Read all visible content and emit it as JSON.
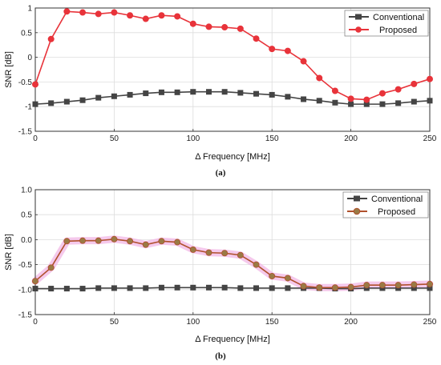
{
  "chart_data": [
    {
      "type": "line",
      "caption": "(a)",
      "xlabel": "Δ Frequency [MHz]",
      "ylabel": "SNR [dB]",
      "xlim": [
        0,
        250
      ],
      "ylim": [
        -1.5,
        1.0
      ],
      "xticks": [
        0,
        50,
        100,
        150,
        200,
        250
      ],
      "yticks": [
        -1.5,
        -1.0,
        -0.5,
        0.0,
        0.5,
        1.0
      ],
      "ytick_labels": [
        "-1.5",
        "-1",
        "-0.5",
        "0",
        "0.5",
        "1"
      ],
      "grid": true,
      "legend_position": "top-right",
      "x": [
        0,
        10,
        20,
        30,
        40,
        50,
        60,
        70,
        80,
        90,
        100,
        110,
        120,
        130,
        140,
        150,
        160,
        170,
        180,
        190,
        200,
        210,
        220,
        230,
        240,
        250
      ],
      "series": [
        {
          "name": "Conventional",
          "color": "#444444",
          "marker": "square",
          "values": [
            -0.95,
            -0.93,
            -0.9,
            -0.87,
            -0.82,
            -0.79,
            -0.76,
            -0.73,
            -0.71,
            -0.71,
            -0.7,
            -0.7,
            -0.7,
            -0.72,
            -0.74,
            -0.76,
            -0.8,
            -0.85,
            -0.88,
            -0.92,
            -0.95,
            -0.95,
            -0.95,
            -0.93,
            -0.9,
            -0.88
          ]
        },
        {
          "name": "Proposed",
          "color": "#e8333a",
          "marker": "circle",
          "values": [
            -0.55,
            0.37,
            0.93,
            0.91,
            0.88,
            0.91,
            0.85,
            0.78,
            0.85,
            0.83,
            0.68,
            0.62,
            0.61,
            0.58,
            0.38,
            0.17,
            0.13,
            -0.08,
            -0.42,
            -0.68,
            -0.84,
            -0.86,
            -0.73,
            -0.65,
            -0.54,
            -0.44
          ]
        }
      ]
    },
    {
      "type": "line",
      "caption": "(b)",
      "xlabel": "Δ Frequency [MHz]",
      "ylabel": "SNR [dB]",
      "xlim": [
        0,
        250
      ],
      "ylim": [
        -1.5,
        1.0
      ],
      "xticks": [
        0,
        50,
        100,
        150,
        200,
        250
      ],
      "yticks": [
        -1.5,
        -1.0,
        -0.5,
        0.0,
        0.5,
        1.0
      ],
      "ytick_labels": [
        "-1.5",
        "-1.0",
        "-0.5",
        "0.0",
        "0.5",
        "1.0"
      ],
      "grid": true,
      "legend_position": "top-right",
      "x": [
        0,
        10,
        20,
        30,
        40,
        50,
        60,
        70,
        80,
        90,
        100,
        110,
        120,
        130,
        140,
        150,
        160,
        170,
        180,
        190,
        200,
        210,
        220,
        230,
        240,
        250
      ],
      "series": [
        {
          "name": "Conventional",
          "color": "#444444",
          "marker": "square",
          "values": [
            -0.98,
            -0.98,
            -0.98,
            -0.98,
            -0.97,
            -0.97,
            -0.97,
            -0.97,
            -0.96,
            -0.96,
            -0.96,
            -0.96,
            -0.96,
            -0.97,
            -0.97,
            -0.97,
            -0.97,
            -0.97,
            -0.97,
            -0.98,
            -0.98,
            -0.97,
            -0.97,
            -0.97,
            -0.97,
            -0.97
          ]
        },
        {
          "name": "Proposed",
          "color": "#b0502c",
          "marker_fill": "#9a7a45",
          "band_color": "#f1b7e6",
          "marker": "circle",
          "values": [
            -0.83,
            -0.56,
            -0.03,
            -0.02,
            -0.02,
            0.01,
            -0.03,
            -0.1,
            -0.03,
            -0.05,
            -0.2,
            -0.26,
            -0.27,
            -0.31,
            -0.5,
            -0.73,
            -0.77,
            -0.93,
            -0.96,
            -0.96,
            -0.95,
            -0.91,
            -0.91,
            -0.91,
            -0.9,
            -0.89
          ]
        }
      ]
    }
  ]
}
